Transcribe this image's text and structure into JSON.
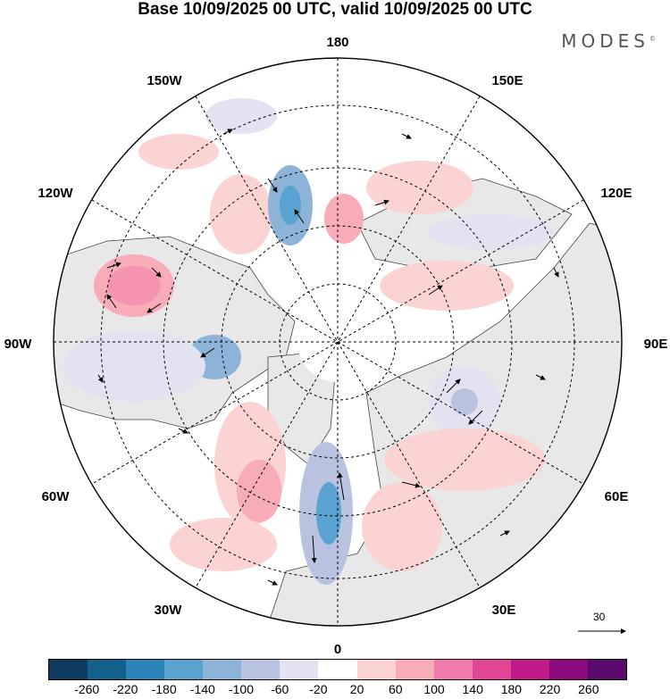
{
  "title": "Base 10/09/2025 00 UTC, valid 10/09/2025 00 UTC",
  "brand": "MODES",
  "brand_mark": "©",
  "longitude_labels": {
    "lon_180": "180",
    "lon_150e": "150E",
    "lon_120e": "120E",
    "lon_90e": "90E",
    "lon_60e": "60E",
    "lon_30e": "30E",
    "lon_0": "0",
    "lon_30w": "30W",
    "lon_60w": "60W",
    "lon_90w": "90W",
    "lon_120w": "120W",
    "lon_150w": "150W"
  },
  "reference_vector_value": "30",
  "colorbar": {
    "colors": [
      "#0d3a5e",
      "#155f8c",
      "#2d84b8",
      "#5aa3d0",
      "#8db3d8",
      "#b9c3e0",
      "#e3e2f0",
      "#ffffff",
      "#fbd3d3",
      "#f7acb7",
      "#f17bac",
      "#e04596",
      "#bf1a88",
      "#8b0a7e",
      "#5b0a6e"
    ],
    "labels": [
      "-260",
      "-220",
      "-180",
      "-140",
      "-100",
      "-60",
      "-20",
      "20",
      "60",
      "100",
      "140",
      "180",
      "220",
      "260"
    ]
  },
  "colors": {
    "land": "#e8e8e8",
    "ocean": "#ffffff",
    "coast": "#444444"
  }
}
